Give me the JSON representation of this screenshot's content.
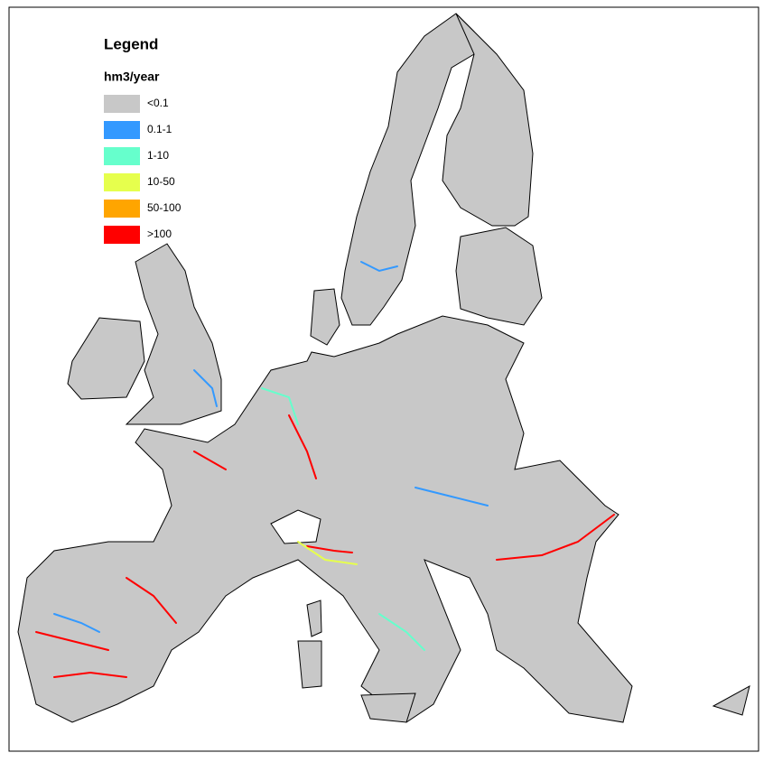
{
  "legend": {
    "title": "Legend",
    "unit": "hm3/year",
    "items": [
      {
        "label": "<0.1",
        "color": "#c8c8c8"
      },
      {
        "label": "0.1-1",
        "color": "#3399ff"
      },
      {
        "label": "1-10",
        "color": "#66ffcc"
      },
      {
        "label": "10-50",
        "color": "#e6ff4d"
      },
      {
        "label": "50-100",
        "color": "#ffa500"
      },
      {
        "label": ">100",
        "color": "#ff0000"
      }
    ]
  }
}
